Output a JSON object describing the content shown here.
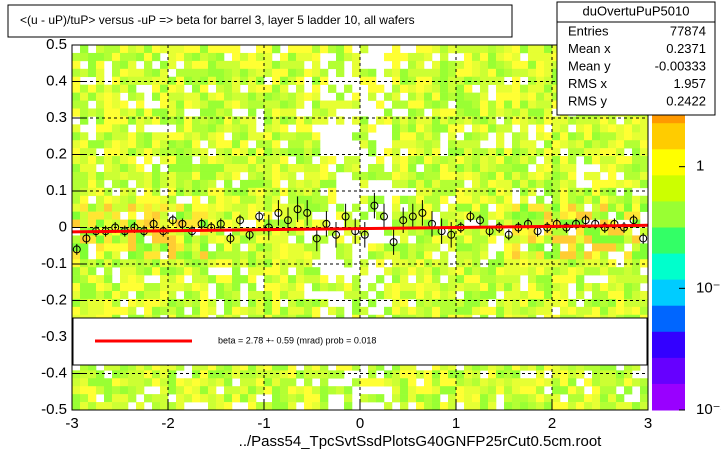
{
  "chart_data": {
    "type": "scatter",
    "title": "<(u - uP)/tuP> versus  -uP => beta for barrel 3, layer 5 ladder 10, all wafers",
    "x_label": "../Pass54_TpcSvtSsdPlotsG40GNFP25rCut0.5cm.root",
    "xlim": [
      -3,
      3
    ],
    "ylim": [
      -0.5,
      0.5
    ],
    "xticks": [
      -3,
      -2,
      -1,
      0,
      1,
      2,
      3
    ],
    "yticks": [
      -0.5,
      -0.4,
      -0.3,
      -0.2,
      -0.1,
      0,
      0.1,
      0.2,
      0.3,
      0.4,
      0.5
    ],
    "grid": true,
    "zlim": [
      0.01,
      10
    ],
    "zlog": true,
    "zticks": [
      {
        "value": 10,
        "label": "10"
      },
      1,
      {
        "value": 0.1,
        "label": "10⁻¹"
      },
      {
        "value": 0.01,
        "label": "10⁻²"
      }
    ],
    "points": {
      "color": "#000000",
      "x": [
        -2.95,
        -2.85,
        -2.75,
        -2.65,
        -2.55,
        -2.45,
        -2.35,
        -2.25,
        -2.15,
        -2.05,
        -1.95,
        -1.85,
        -1.75,
        -1.65,
        -1.55,
        -1.45,
        -1.35,
        -1.25,
        -1.15,
        -1.05,
        -0.95,
        -0.85,
        -0.75,
        -0.65,
        -0.55,
        -0.45,
        -0.35,
        -0.25,
        -0.15,
        -0.05,
        0.05,
        0.15,
        0.25,
        0.35,
        0.45,
        0.55,
        0.65,
        0.75,
        0.85,
        0.95,
        1.05,
        1.15,
        1.25,
        1.35,
        1.45,
        1.55,
        1.65,
        1.75,
        1.85,
        1.95,
        2.05,
        2.15,
        2.25,
        2.35,
        2.45,
        2.55,
        2.65,
        2.75,
        2.85,
        2.95
      ],
      "y": [
        -0.06,
        -0.03,
        -0.01,
        -0.01,
        0,
        -0.01,
        0,
        -0.01,
        0.01,
        -0.01,
        0.02,
        0.01,
        -0.01,
        0.01,
        0,
        0.01,
        -0.03,
        0.02,
        -0.02,
        0.03,
        0,
        0.04,
        0.02,
        0.05,
        0.04,
        -0.03,
        0.01,
        -0.02,
        0.03,
        -0.01,
        -0.02,
        0.06,
        0.03,
        -0.04,
        0.02,
        0.03,
        0.04,
        0.01,
        -0.01,
        -0.02,
        0,
        0.03,
        0.02,
        -0.01,
        0,
        -0.02,
        0,
        0.01,
        -0.01,
        0,
        0.01,
        0,
        0.01,
        0.02,
        0.01,
        0,
        0.01,
        0,
        0.02,
        -0.03
      ],
      "errors": [
        0.015,
        0.015,
        0.015,
        0.015,
        0.015,
        0.015,
        0.015,
        0.015,
        0.015,
        0.015,
        0.015,
        0.015,
        0.015,
        0.015,
        0.015,
        0.015,
        0.015,
        0.015,
        0.015,
        0.015,
        0.035,
        0.035,
        0.035,
        0.035,
        0.035,
        0.035,
        0.035,
        0.035,
        0.035,
        0.035,
        0.035,
        0.035,
        0.035,
        0.035,
        0.035,
        0.035,
        0.035,
        0.035,
        0.035,
        0.035,
        0.015,
        0.015,
        0.015,
        0.015,
        0.015,
        0.015,
        0.015,
        0.015,
        0.015,
        0.015,
        0.015,
        0.015,
        0.015,
        0.015,
        0.015,
        0.015,
        0.015,
        0.015,
        0.015,
        0.015
      ]
    },
    "fit_line": {
      "color": "#ff0000",
      "x": [
        -3,
        3
      ],
      "y": [
        -0.012,
        0.006
      ]
    },
    "legend_text": "beta =     2.78 +-  0.59 (mrad) prob = 0.018",
    "stats": {
      "title": "duOvertuPuP5010",
      "rows": [
        [
          "Entries",
          "77874"
        ],
        [
          "Mean x",
          "0.2371"
        ],
        [
          "Mean y",
          "-0.00333"
        ],
        [
          "RMS x",
          "1.957"
        ],
        [
          "RMS y",
          "0.2422"
        ]
      ]
    }
  }
}
